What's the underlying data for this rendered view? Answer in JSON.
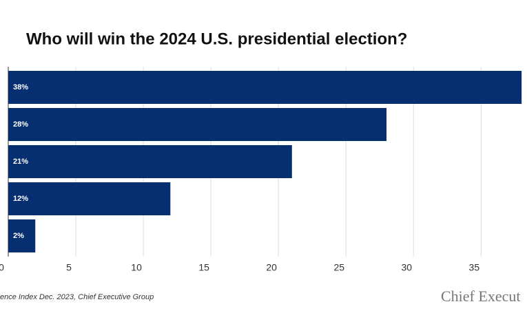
{
  "chart_data": {
    "type": "bar",
    "orientation": "horizontal",
    "title": "Who will win the 2024 U.S. presidential election?",
    "categories": [
      null,
      null,
      null,
      null,
      null
    ],
    "values": [
      38,
      28,
      21,
      12,
      2
    ],
    "value_labels": [
      "38%",
      "28%",
      "21%",
      "12%",
      "2%"
    ],
    "color": "#062f72",
    "xlim": [
      0,
      38.4
    ],
    "xticks": [
      0,
      5,
      10,
      15,
      20,
      25,
      30,
      35
    ],
    "grid": true,
    "source": "ence Index Dec. 2023, Chief Executive Group",
    "logo": "Chief Execut"
  }
}
